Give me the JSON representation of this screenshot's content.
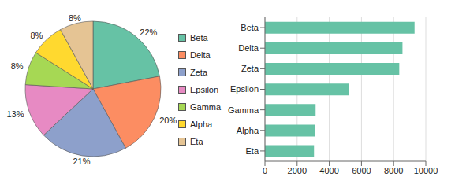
{
  "chart_data": [
    {
      "type": "pie",
      "categories": [
        "Beta",
        "Delta",
        "Zeta",
        "Epsilon",
        "Gamma",
        "Alpha",
        "Eta"
      ],
      "values": [
        22,
        20,
        21,
        13,
        8,
        8,
        8
      ],
      "value_labels": [
        "22%",
        "20%",
        "21%",
        "13%",
        "8%",
        "8%",
        "8%"
      ],
      "colors": [
        "#66c2a5",
        "#fc8d62",
        "#8da0cb",
        "#e78ac3",
        "#a6d854",
        "#ffd92f",
        "#e5c494"
      ],
      "data_labels": true,
      "legend": "right"
    },
    {
      "type": "bar",
      "orientation": "horizontal",
      "categories": [
        "Beta",
        "Delta",
        "Zeta",
        "Epsilon",
        "Gamma",
        "Alpha",
        "Eta"
      ],
      "values": [
        9300,
        8550,
        8350,
        5200,
        3150,
        3100,
        3050
      ],
      "color": "#66c2a5",
      "xlim": [
        0,
        10000
      ],
      "xticks": [
        0,
        2000,
        4000,
        6000,
        8000,
        10000
      ],
      "grid": true
    }
  ]
}
